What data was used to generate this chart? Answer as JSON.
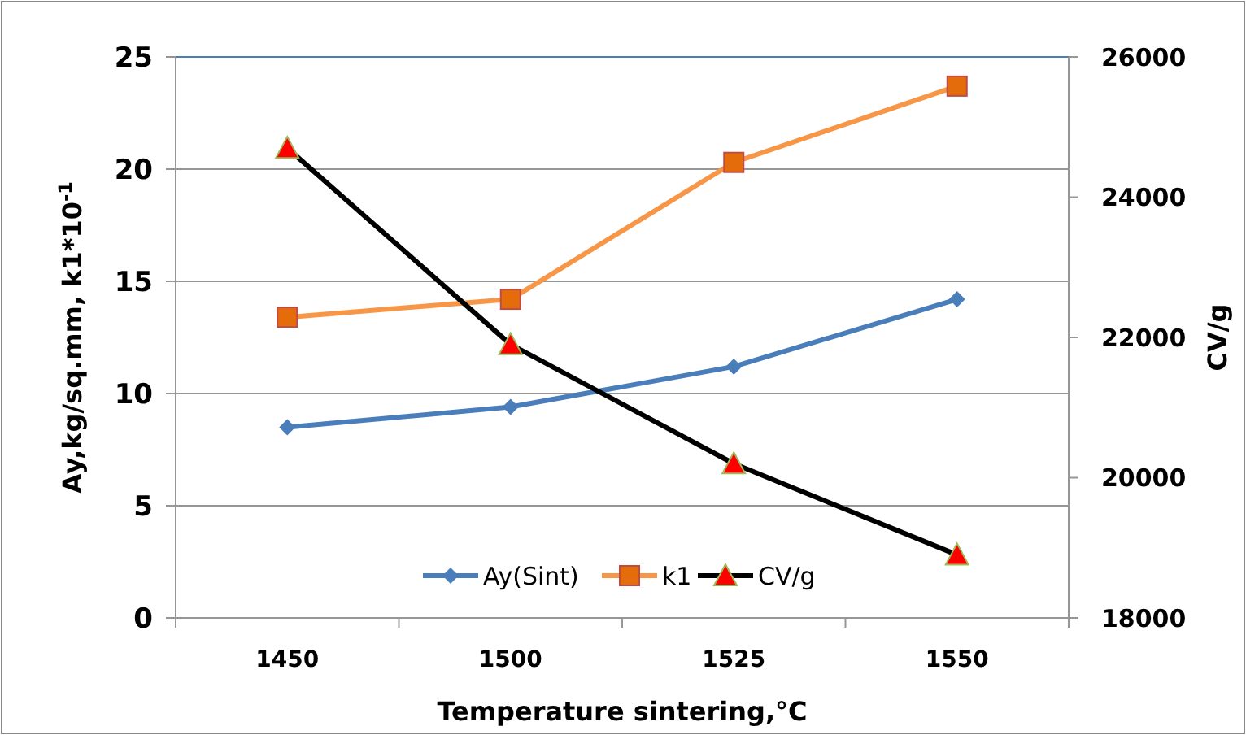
{
  "chart_data": {
    "type": "line",
    "xlabel": "Temperature sintering,°C",
    "ylabel": "Ay,kg/sq.mm, k1*10$^{-1}$",
    "y2label": "CV/g",
    "categories": [
      "1450",
      "1500",
      "1525",
      "1550"
    ],
    "series": [
      {
        "name": "Ay(Sint)",
        "color": "#4a7ebb",
        "marker": "diamond",
        "values": [
          8.5,
          9.4,
          11.2,
          14.2
        ]
      },
      {
        "name": "k1",
        "color": "#f79646",
        "marker": "square",
        "values": [
          13.4,
          14.2,
          20.3,
          23.7
        ]
      },
      {
        "name": "CV/g",
        "color": "#000000",
        "marker": "triangle",
        "axis": "y2",
        "values": [
          24700,
          21900,
          20200,
          18900
        ]
      }
    ],
    "ylim": [
      0,
      25
    ],
    "yticks": [
      0,
      5,
      10,
      15,
      20,
      25
    ],
    "y2lim": [
      18000,
      26000
    ],
    "y2ticks": [
      18000,
      20000,
      22000,
      24000,
      26000
    ],
    "grid": "y",
    "legend": "bottom"
  }
}
